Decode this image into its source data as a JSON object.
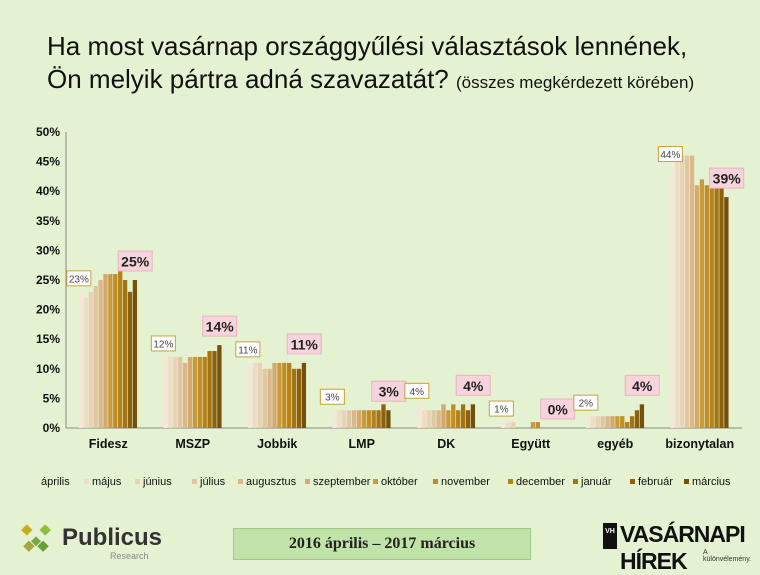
{
  "title": {
    "line1": "Ha most vasárnap országgyűlési választások lennének,",
    "line2": "Ön melyik pártra adná szavazatát?",
    "sub": "(összes megkérdezett körében)"
  },
  "footer": {
    "period": "2016 április – 2017 március",
    "brand_left": "Publicus",
    "brand_left_sub": "Research",
    "brand_right": "VASÁRNAPI HÍREK",
    "brand_right_mark": "VH",
    "brand_right_slogan": "A különvélemény."
  },
  "chart_data": {
    "type": "bar",
    "categories": [
      "Fidesz",
      "MSZP",
      "Jobbik",
      "LMP",
      "DK",
      "Együtt",
      "egyéb",
      "bizonytalan"
    ],
    "ylim": [
      0,
      50
    ],
    "yticks": [
      "0%",
      "5%",
      "10%",
      "15%",
      "20%",
      "25%",
      "30%",
      "35%",
      "40%",
      "45%",
      "50%"
    ],
    "grid": false,
    "legend_position": "bottom",
    "series": [
      {
        "name": "április",
        "color": "#f4e7d6",
        "values": [
          23,
          12,
          11,
          3,
          4,
          1,
          2,
          44
        ]
      },
      {
        "name": "május",
        "color": "#eeddc6",
        "values": [
          22,
          12,
          11,
          3,
          3,
          1,
          2,
          46
        ]
      },
      {
        "name": "június",
        "color": "#e8d2b6",
        "values": [
          23,
          12,
          11,
          3,
          3,
          1,
          2,
          46
        ]
      },
      {
        "name": "július",
        "color": "#e1c6a2",
        "values": [
          24,
          12,
          10,
          3,
          3,
          0,
          2,
          46
        ]
      },
      {
        "name": "augusztus",
        "color": "#dab88b",
        "values": [
          25,
          11,
          10,
          3,
          3,
          0,
          2,
          46
        ]
      },
      {
        "name": "szeptember",
        "color": "#d3a970",
        "values": [
          26,
          12,
          11,
          3,
          4,
          0,
          2,
          41
        ]
      },
      {
        "name": "október",
        "color": "#c99a3c",
        "values": [
          26,
          12,
          11,
          3,
          3,
          1,
          2,
          42
        ]
      },
      {
        "name": "november",
        "color": "#c08e24",
        "values": [
          26,
          12,
          11,
          3,
          4,
          1,
          2,
          41
        ]
      },
      {
        "name": "december",
        "color": "#b5821a",
        "values": [
          27,
          12,
          11,
          3,
          3,
          0,
          1,
          43
        ]
      },
      {
        "name": "január",
        "color": "#a47412",
        "values": [
          25,
          13,
          10,
          3,
          4,
          0,
          2,
          43
        ]
      },
      {
        "name": "február",
        "color": "#8d610c",
        "values": [
          23,
          13,
          10,
          4,
          3,
          0,
          3,
          43
        ]
      },
      {
        "name": "március",
        "color": "#74500a",
        "values": [
          25,
          14,
          11,
          3,
          4,
          0,
          4,
          39
        ]
      }
    ],
    "callouts": [
      {
        "category": "Fidesz",
        "first": "23%",
        "last": "25%"
      },
      {
        "category": "MSZP",
        "first": "12%",
        "last": "14%"
      },
      {
        "category": "Jobbik",
        "first": "11%",
        "last": "11%"
      },
      {
        "category": "LMP",
        "first": "3%",
        "last": "3%"
      },
      {
        "category": "DK",
        "first": "4%",
        "last": "4%"
      },
      {
        "category": "Együtt",
        "first": "1%",
        "last": "0%"
      },
      {
        "category": "egyéb",
        "first": "2%",
        "last": "4%"
      },
      {
        "category": "bizonytalan",
        "first": "44%",
        "last": "39%"
      }
    ]
  }
}
